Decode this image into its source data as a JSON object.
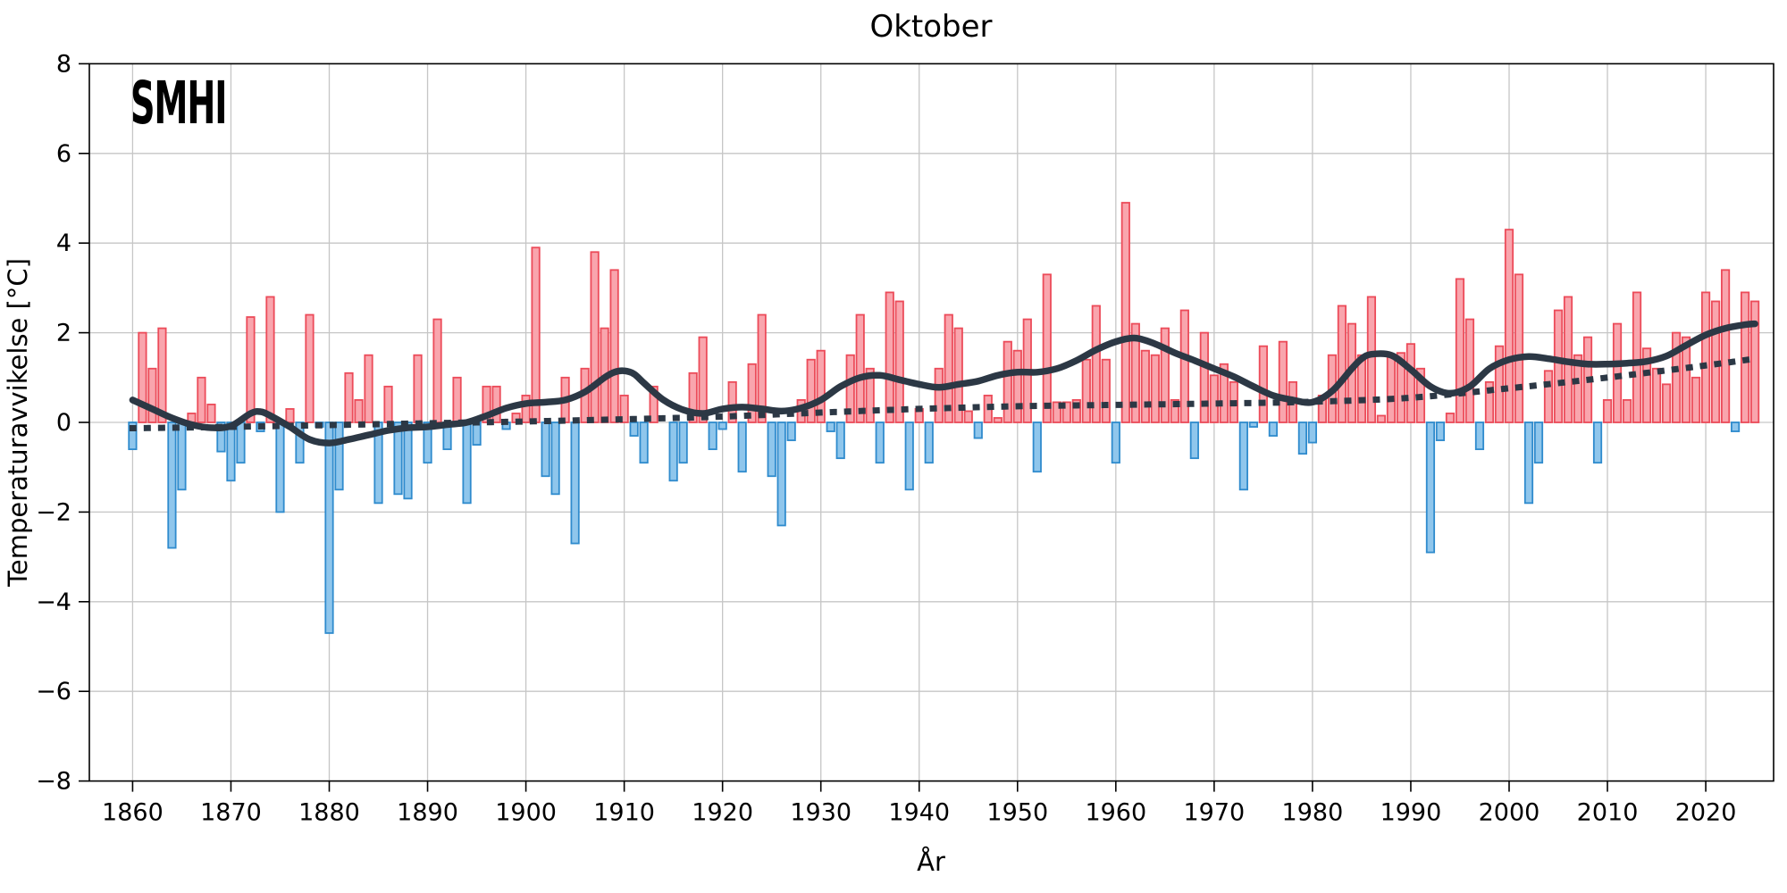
{
  "title": "Oktober",
  "logo": {
    "text": "SMHI"
  },
  "axes": {
    "x_label": "År",
    "y_label": "Temperaturavvikelse [°C]",
    "x_ticks": [
      1860,
      1870,
      1880,
      1890,
      1900,
      1910,
      1920,
      1930,
      1940,
      1950,
      1960,
      1970,
      1980,
      1990,
      2000,
      2010,
      2020
    ],
    "y_ticks": [
      -8,
      -6,
      -4,
      -2,
      0,
      2,
      4,
      6,
      8
    ]
  },
  "colors": {
    "positive_fill": "#f9a5ad",
    "positive_edge": "#ec4b59",
    "negative_fill": "#8fc6ec",
    "negative_edge": "#2f8bcd",
    "smoothed_line": "#2c3845",
    "trend_line": "#2c3845",
    "grid": "#c6c6c6",
    "spine": "#000000",
    "background": "#ffffff"
  },
  "chart_data": {
    "type": "bar",
    "title": "Oktober",
    "xlabel": "År",
    "ylabel": "Temperaturavvikelse [°C]",
    "ylim": [
      -8,
      8
    ],
    "x_range_years": [
      1855.6,
      2026.9
    ],
    "grid": true,
    "start_year": 1860,
    "end_year": 2025,
    "values": [
      -0.6,
      2.0,
      1.2,
      2.1,
      -2.8,
      -1.5,
      0.2,
      1.0,
      0.4,
      -0.65,
      -1.3,
      -0.9,
      2.35,
      -0.2,
      2.8,
      -2.0,
      0.3,
      -0.9,
      2.4,
      -0.1,
      -4.7,
      -1.5,
      1.1,
      0.5,
      1.5,
      -1.8,
      0.8,
      -1.6,
      -1.7,
      1.5,
      -0.9,
      2.3,
      -0.6,
      1.0,
      -1.8,
      -0.5,
      0.8,
      0.8,
      -0.15,
      0.2,
      0.6,
      3.9,
      -1.2,
      -1.6,
      1.0,
      -2.7,
      1.2,
      3.8,
      2.1,
      3.4,
      0.6,
      -0.3,
      -0.9,
      0.8,
      0.0,
      -1.3,
      -0.9,
      1.1,
      1.9,
      -0.6,
      -0.15,
      0.9,
      -1.1,
      1.3,
      2.4,
      -1.2,
      -2.3,
      -0.4,
      0.5,
      1.4,
      1.6,
      -0.2,
      -0.8,
      1.5,
      2.4,
      1.2,
      -0.9,
      2.9,
      2.7,
      -1.5,
      0.3,
      -0.9,
      1.2,
      2.4,
      2.1,
      0.25,
      -0.35,
      0.6,
      0.1,
      1.8,
      1.6,
      2.3,
      -1.1,
      3.3,
      0.45,
      0.45,
      0.5,
      1.4,
      2.6,
      1.4,
      -0.9,
      4.9,
      2.2,
      1.6,
      1.5,
      2.1,
      0.5,
      2.5,
      -0.8,
      2.0,
      1.05,
      1.3,
      0.9,
      -1.5,
      -0.1,
      1.7,
      -0.3,
      1.8,
      0.9,
      -0.7,
      -0.45,
      0.6,
      1.5,
      2.6,
      2.2,
      1.5,
      2.8,
      0.15,
      1.5,
      1.55,
      1.75,
      1.2,
      -2.9,
      -0.4,
      0.2,
      3.2,
      2.3,
      -0.6,
      0.9,
      1.7,
      4.3,
      3.3,
      -1.8,
      -0.9,
      1.15,
      2.5,
      2.8,
      1.5,
      1.9,
      -0.9,
      0.5,
      2.2,
      0.5,
      2.9,
      1.65,
      1.2,
      0.85,
      2.0,
      1.9,
      1.0,
      2.9,
      2.7,
      3.4,
      -0.2,
      2.9,
      2.7
    ],
    "series": [
      {
        "name": "smoothed",
        "style": "solid",
        "points": [
          [
            1860,
            0.5
          ],
          [
            1862,
            0.3
          ],
          [
            1864,
            0.1
          ],
          [
            1866,
            -0.05
          ],
          [
            1868,
            -0.12
          ],
          [
            1870,
            -0.08
          ],
          [
            1872,
            0.2
          ],
          [
            1873,
            0.24
          ],
          [
            1874,
            0.15
          ],
          [
            1876,
            -0.1
          ],
          [
            1878,
            -0.38
          ],
          [
            1880,
            -0.46
          ],
          [
            1882,
            -0.38
          ],
          [
            1884,
            -0.28
          ],
          [
            1886,
            -0.18
          ],
          [
            1888,
            -0.12
          ],
          [
            1890,
            -0.1
          ],
          [
            1892,
            -0.05
          ],
          [
            1894,
            0.0
          ],
          [
            1896,
            0.15
          ],
          [
            1898,
            0.32
          ],
          [
            1900,
            0.42
          ],
          [
            1902,
            0.45
          ],
          [
            1904,
            0.5
          ],
          [
            1906,
            0.68
          ],
          [
            1908,
            1.0
          ],
          [
            1909,
            1.12
          ],
          [
            1910,
            1.15
          ],
          [
            1911,
            1.08
          ],
          [
            1912,
            0.88
          ],
          [
            1914,
            0.5
          ],
          [
            1916,
            0.28
          ],
          [
            1918,
            0.2
          ],
          [
            1920,
            0.3
          ],
          [
            1922,
            0.34
          ],
          [
            1924,
            0.3
          ],
          [
            1926,
            0.25
          ],
          [
            1928,
            0.32
          ],
          [
            1930,
            0.5
          ],
          [
            1932,
            0.8
          ],
          [
            1934,
            1.0
          ],
          [
            1936,
            1.05
          ],
          [
            1938,
            0.95
          ],
          [
            1940,
            0.85
          ],
          [
            1942,
            0.78
          ],
          [
            1944,
            0.85
          ],
          [
            1946,
            0.92
          ],
          [
            1948,
            1.05
          ],
          [
            1950,
            1.12
          ],
          [
            1952,
            1.12
          ],
          [
            1954,
            1.2
          ],
          [
            1956,
            1.38
          ],
          [
            1958,
            1.62
          ],
          [
            1960,
            1.8
          ],
          [
            1962,
            1.88
          ],
          [
            1964,
            1.75
          ],
          [
            1966,
            1.55
          ],
          [
            1968,
            1.38
          ],
          [
            1970,
            1.2
          ],
          [
            1972,
            1.02
          ],
          [
            1974,
            0.8
          ],
          [
            1976,
            0.6
          ],
          [
            1978,
            0.5
          ],
          [
            1980,
            0.45
          ],
          [
            1982,
            0.7
          ],
          [
            1984,
            1.2
          ],
          [
            1985,
            1.42
          ],
          [
            1986,
            1.52
          ],
          [
            1988,
            1.5
          ],
          [
            1990,
            1.18
          ],
          [
            1992,
            0.8
          ],
          [
            1994,
            0.65
          ],
          [
            1996,
            0.8
          ],
          [
            1998,
            1.2
          ],
          [
            2000,
            1.4
          ],
          [
            2002,
            1.47
          ],
          [
            2004,
            1.42
          ],
          [
            2006,
            1.35
          ],
          [
            2008,
            1.3
          ],
          [
            2010,
            1.3
          ],
          [
            2012,
            1.32
          ],
          [
            2014,
            1.36
          ],
          [
            2016,
            1.48
          ],
          [
            2018,
            1.72
          ],
          [
            2020,
            1.95
          ],
          [
            2022,
            2.1
          ],
          [
            2024,
            2.18
          ],
          [
            2025,
            2.2
          ]
        ]
      },
      {
        "name": "trend",
        "style": "dotted",
        "points": [
          [
            1860,
            -0.13
          ],
          [
            1870,
            -0.1
          ],
          [
            1880,
            -0.06
          ],
          [
            1890,
            -0.02
          ],
          [
            1900,
            0.02
          ],
          [
            1910,
            0.07
          ],
          [
            1920,
            0.13
          ],
          [
            1930,
            0.22
          ],
          [
            1940,
            0.3
          ],
          [
            1950,
            0.36
          ],
          [
            1960,
            0.39
          ],
          [
            1970,
            0.42
          ],
          [
            1980,
            0.46
          ],
          [
            1990,
            0.55
          ],
          [
            2000,
            0.76
          ],
          [
            2010,
            1.0
          ],
          [
            2020,
            1.27
          ],
          [
            2025,
            1.42
          ]
        ]
      }
    ]
  }
}
